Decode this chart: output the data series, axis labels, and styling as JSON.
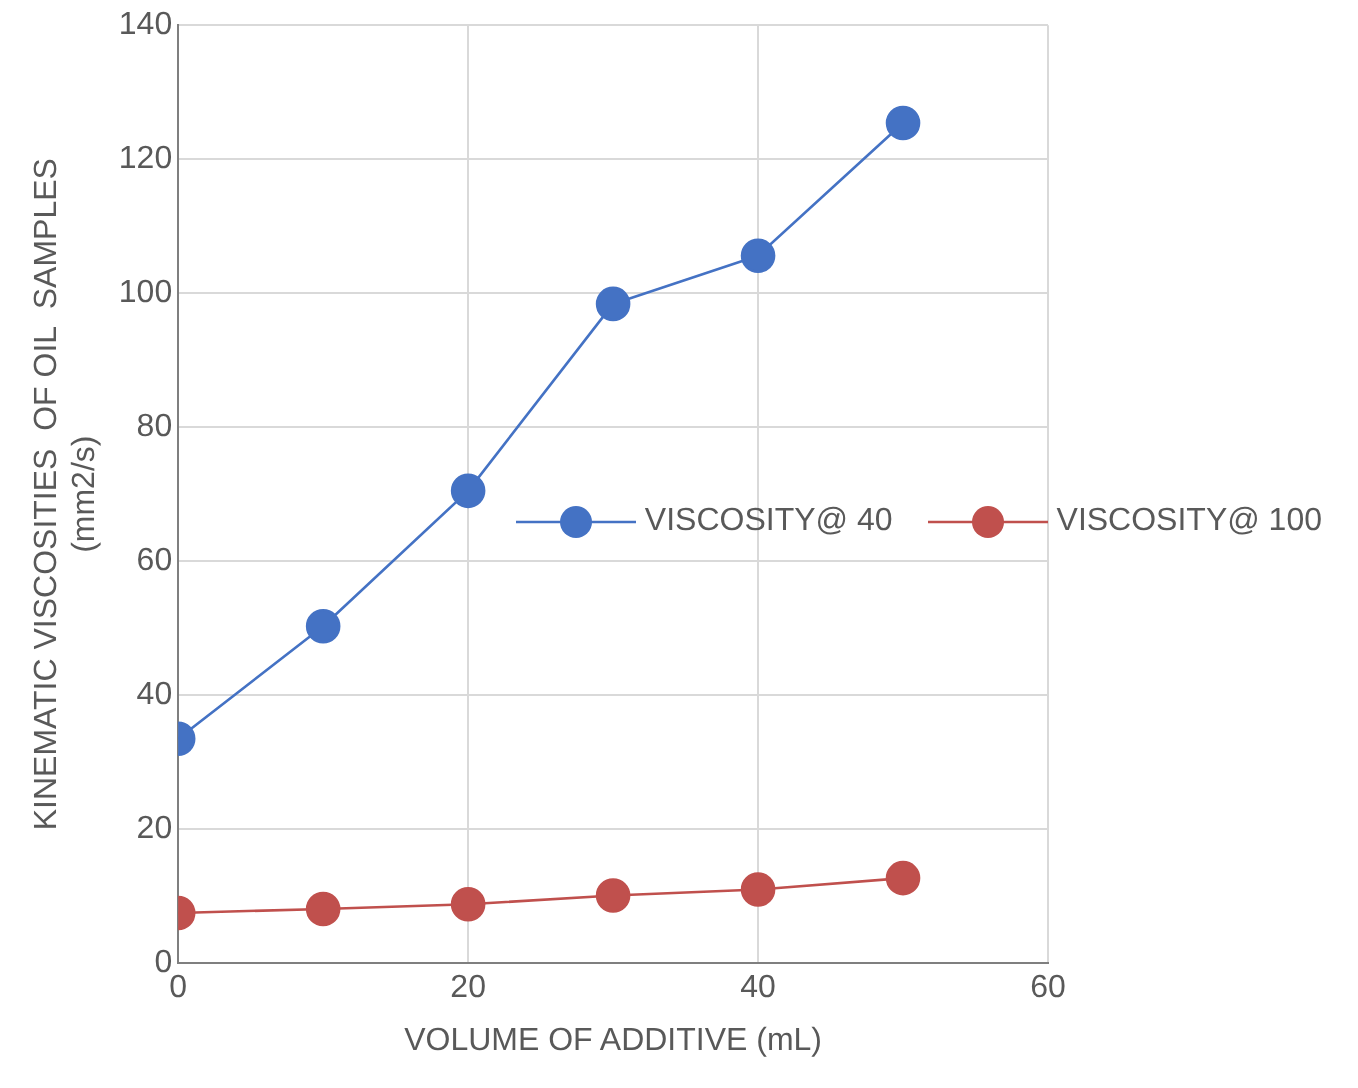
{
  "chart_data": {
    "type": "line",
    "xlabel": "VOLUME OF ADDITIVE (mL)",
    "ylabel": "KINEMATIC VISCOSITIES  OF OIL  SAMPLES (mm2/s)",
    "x": [
      0,
      10,
      20,
      30,
      40,
      50
    ],
    "series": [
      {
        "name": "VISCOSITY@ 40",
        "color": "#4472c4",
        "values": [
          33.5,
          50.3,
          70.5,
          98.4,
          105.6,
          125.4
        ]
      },
      {
        "name": "VISCOSITY@ 100",
        "color": "#c0504d",
        "values": [
          7.5,
          8.1,
          8.8,
          10.1,
          11.0,
          12.7
        ]
      }
    ],
    "xlim": [
      0,
      60
    ],
    "xticks": [
      0,
      20,
      40,
      60
    ],
    "ylim": [
      0,
      140
    ],
    "yticks": [
      0,
      20,
      40,
      60,
      80,
      100,
      120,
      140
    ],
    "grid": true,
    "legend": "right",
    "marker": "circle",
    "line_style": "solid"
  }
}
